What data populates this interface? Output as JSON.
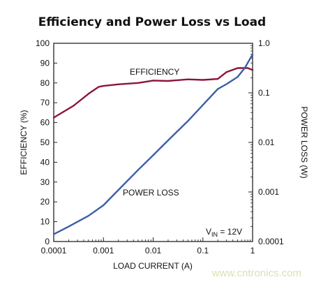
{
  "chart_data": {
    "type": "line",
    "title": "Efficiency and Power Loss vs Load",
    "xlabel": "LOAD CURRENT (A)",
    "x_scale": "log",
    "xlim": [
      0.0001,
      1
    ],
    "x_ticks": [
      "0.0001",
      "0.001",
      "0.01",
      "0.1",
      "1"
    ],
    "y_left": {
      "label": "EFFICIENCY (%)",
      "lim": [
        0,
        100
      ],
      "ticks": [
        "0",
        "10",
        "20",
        "30",
        "40",
        "50",
        "60",
        "70",
        "80",
        "90",
        "100"
      ]
    },
    "y_right": {
      "label": "POWER LOSS (W)",
      "scale": "log",
      "lim": [
        0.0001,
        1.0
      ],
      "ticks": [
        "1.0",
        "0.1",
        "0.01",
        "0.001",
        "0.0001"
      ]
    },
    "grid": false,
    "series": [
      {
        "name": "EFFICIENCY",
        "axis": "left",
        "color": "#8b1538",
        "x": [
          0.0001,
          0.00025,
          0.0005,
          0.0008,
          0.001,
          0.002,
          0.005,
          0.01,
          0.02,
          0.05,
          0.1,
          0.2,
          0.3,
          0.5,
          0.8,
          1.0
        ],
        "y": [
          62.5,
          68.5,
          74.5,
          78.0,
          78.5,
          79.3,
          80.0,
          81.2,
          81.0,
          81.8,
          81.5,
          82.0,
          85.5,
          87.5,
          87.5,
          86.5
        ]
      },
      {
        "name": "POWER LOSS",
        "axis": "right",
        "color": "#3a5fa8",
        "x": [
          0.0001,
          0.0002,
          0.0005,
          0.001,
          0.002,
          0.005,
          0.01,
          0.02,
          0.05,
          0.1,
          0.2,
          0.3,
          0.5,
          0.7,
          1.0
        ],
        "y": [
          0.00014,
          0.0002,
          0.00033,
          0.00054,
          0.0011,
          0.0028,
          0.0055,
          0.011,
          0.027,
          0.057,
          0.12,
          0.15,
          0.21,
          0.32,
          0.6
        ]
      }
    ],
    "annotations": {
      "efficiency_label": "EFFICIENCY",
      "power_loss_label": "POWER LOSS",
      "vin_prefix": "V",
      "vin_subscript": "IN",
      "vin_value": " = 12V"
    }
  },
  "watermark": "www.cntronics.com"
}
